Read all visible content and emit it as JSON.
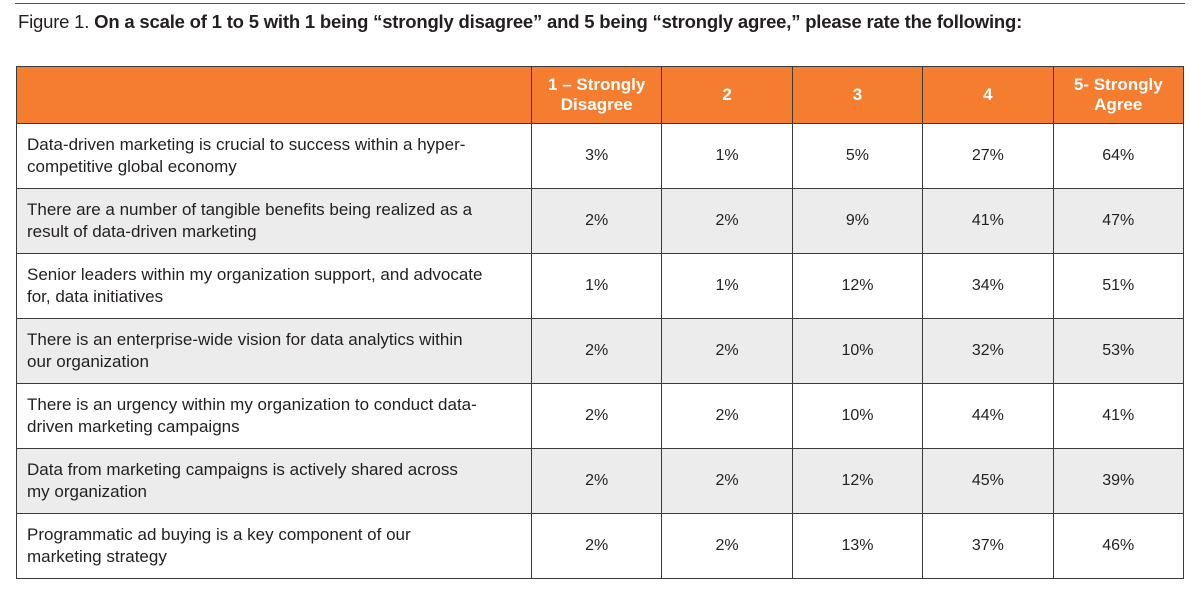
{
  "figure": {
    "label": "Figure 1.",
    "question": "On a scale of 1 to 5 with 1 being “strongly disagree” and 5 being “strongly agree,” please rate the following:"
  },
  "colors": {
    "header_bg": "#f47d30",
    "header_text": "#ffffff",
    "shaded_row": "#ececec",
    "border": "#3a3a3a"
  },
  "chart_data": {
    "type": "table",
    "title": "On a scale of 1 to 5 with 1 being “strongly disagree” and 5 being “strongly agree,” please rate the following:",
    "columns": [
      "",
      "1 – Strongly Disagree",
      "2",
      "3",
      "4",
      "5- Strongly Agree"
    ],
    "header_lines": [
      [],
      [
        "1 – Strongly",
        "Disagree"
      ],
      [
        "2"
      ],
      [
        "3"
      ],
      [
        "4"
      ],
      [
        "5- Strongly",
        "Agree"
      ]
    ],
    "rows": [
      {
        "statement_lines": [
          "Data-driven marketing is crucial to success within a hyper-",
          "competitive global economy"
        ],
        "values": [
          "3%",
          "1%",
          "5%",
          "27%",
          "64%"
        ]
      },
      {
        "statement_lines": [
          "There are a number of tangible benefits being realized as a",
          "result of data-driven marketing"
        ],
        "values": [
          "2%",
          "2%",
          "9%",
          "41%",
          "47%"
        ]
      },
      {
        "statement_lines": [
          "Senior leaders within my organization support, and advocate",
          "for, data initiatives"
        ],
        "values": [
          "1%",
          "1%",
          "12%",
          "34%",
          "51%"
        ]
      },
      {
        "statement_lines": [
          "There is an enterprise-wide vision for data analytics within",
          "our organization"
        ],
        "values": [
          "2%",
          "2%",
          "10%",
          "32%",
          "53%"
        ]
      },
      {
        "statement_lines": [
          "There is an urgency within my organization to conduct data-",
          "driven marketing campaigns"
        ],
        "values": [
          "2%",
          "2%",
          "10%",
          "44%",
          "41%"
        ]
      },
      {
        "statement_lines": [
          "Data from marketing campaigns is actively shared across",
          "my organization"
        ],
        "values": [
          "2%",
          "2%",
          "12%",
          "45%",
          "39%"
        ]
      },
      {
        "statement_lines": [
          "Programmatic ad buying is a key component of our",
          "marketing strategy"
        ],
        "values": [
          "2%",
          "2%",
          "13%",
          "37%",
          "46%"
        ]
      }
    ]
  }
}
